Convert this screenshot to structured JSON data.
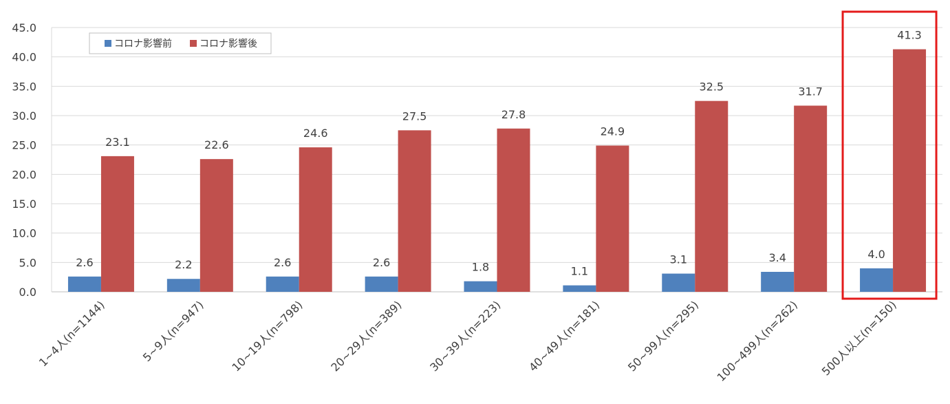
{
  "chart_data": {
    "type": "bar",
    "categories": [
      "1~4人(n=1144)",
      "5~9人(n=947)",
      "10~19人(n=798)",
      "20~29人(n=389)",
      "30~39人(n=223)",
      "40~49人(n=181)",
      "50~99人(n=295)",
      "100~499人(n=262)",
      "500人以上(n=150)"
    ],
    "series": [
      {
        "name": "コロナ影響前",
        "color": "#4F81BD",
        "values": [
          2.6,
          2.2,
          2.6,
          2.6,
          1.8,
          1.1,
          3.1,
          3.4,
          4.0
        ]
      },
      {
        "name": "コロナ影響後",
        "color": "#C0504D",
        "values": [
          23.1,
          22.6,
          24.6,
          27.5,
          27.8,
          24.9,
          32.5,
          31.7,
          41.3
        ]
      }
    ],
    "y_ticks": [
      "0.0",
      "5.0",
      "10.0",
      "15.0",
      "20.0",
      "25.0",
      "30.0",
      "35.0",
      "40.0",
      "45.0"
    ],
    "ylim": [
      0,
      45
    ],
    "grid": true,
    "legend_position": "top-left",
    "highlight": {
      "category_index": 8,
      "color": "#E41B1B"
    }
  }
}
